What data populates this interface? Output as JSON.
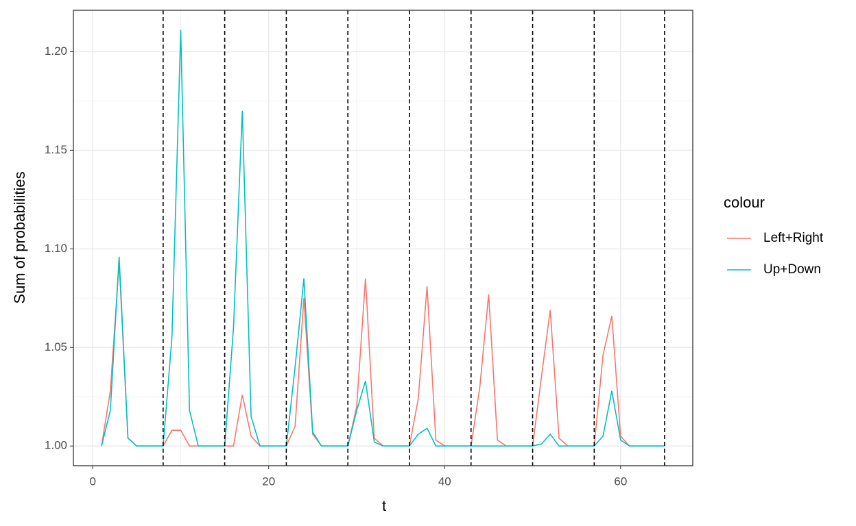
{
  "chart_data": {
    "type": "line",
    "xlabel": "t",
    "ylabel": "Sum of probabilities",
    "legend_title": "colour",
    "legend": "right",
    "x": [
      1,
      2,
      3,
      4,
      5,
      6,
      7,
      8,
      9,
      10,
      11,
      12,
      13,
      14,
      15,
      16,
      17,
      18,
      19,
      20,
      21,
      22,
      23,
      24,
      25,
      26,
      27,
      28,
      29,
      30,
      31,
      32,
      33,
      34,
      35,
      36,
      37,
      38,
      39,
      40,
      41,
      42,
      43,
      44,
      45,
      46,
      47,
      48,
      49,
      50,
      51,
      52,
      53,
      54,
      55,
      56,
      57,
      58,
      59,
      60,
      61,
      62,
      63,
      64,
      65
    ],
    "series": [
      {
        "name": "Left+Right",
        "color": "#F8766D",
        "values": [
          1,
          1.028,
          1.093,
          1.004,
          1,
          1,
          1,
          1,
          1.008,
          1.008,
          1,
          1,
          1,
          1,
          1,
          1,
          1.026,
          1.005,
          1,
          1,
          1,
          1,
          1.01,
          1.075,
          1.006,
          1,
          1,
          1,
          1,
          1.02,
          1.085,
          1.004,
          1,
          1,
          1,
          1,
          1.024,
          1.081,
          1.003,
          1,
          1,
          1,
          1,
          1.03,
          1.077,
          1.003,
          1,
          1,
          1,
          1,
          1.035,
          1.069,
          1.004,
          1,
          1,
          1,
          1,
          1.046,
          1.066,
          1.005,
          1,
          1,
          1,
          1,
          1
        ]
      },
      {
        "name": "Up+Down",
        "color": "#00BFC4",
        "values": [
          1,
          1.018,
          1.096,
          1.004,
          1,
          1,
          1,
          1,
          1.055,
          1.211,
          1.018,
          1,
          1,
          1,
          1,
          1.06,
          1.17,
          1.015,
          1,
          1,
          1,
          1,
          1.04,
          1.085,
          1.007,
          1,
          1,
          1,
          1,
          1.018,
          1.033,
          1.002,
          1,
          1,
          1,
          1,
          1.006,
          1.009,
          1,
          1,
          1,
          1,
          1,
          1,
          1,
          1,
          1,
          1,
          1,
          1,
          1.001,
          1.006,
          1,
          1,
          1,
          1,
          1,
          1.005,
          1.028,
          1.003,
          1,
          1,
          1,
          1,
          1
        ]
      }
    ],
    "vlines": [
      8,
      15,
      22,
      29,
      36,
      43,
      50,
      57,
      65
    ],
    "xlim": [
      -2.2,
      68.2
    ],
    "ylim": [
      0.99,
      1.221
    ],
    "xticks": [
      0,
      20,
      40,
      60
    ],
    "yticks": [
      {
        "value": 1,
        "label": "1.00"
      },
      {
        "value": 1.05,
        "label": "1.05"
      },
      {
        "value": 1.1,
        "label": "1.10"
      },
      {
        "value": 1.15,
        "label": "1.15"
      },
      {
        "value": 1.2,
        "label": "1.20"
      }
    ],
    "minor_xticks": [
      10,
      30,
      50
    ],
    "minor_yticks": [
      1.025,
      1.075,
      1.125,
      1.175
    ],
    "grid": true
  }
}
